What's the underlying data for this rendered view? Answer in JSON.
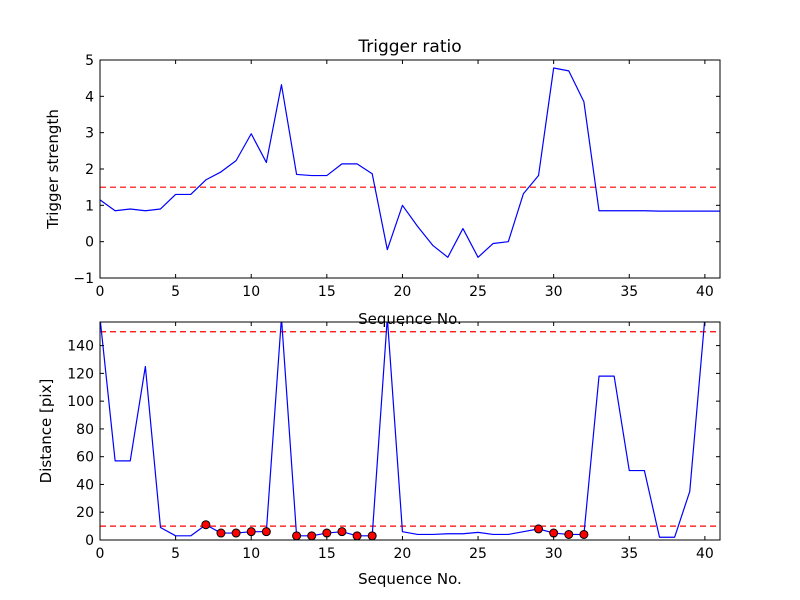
{
  "chart_data": [
    {
      "type": "line",
      "title": "Trigger ratio",
      "xlabel": "Sequence No.",
      "ylabel": "Trigger strength",
      "xlim": [
        0,
        41
      ],
      "ylim": [
        -1,
        5
      ],
      "xticks": [
        0,
        5,
        10,
        15,
        20,
        25,
        30,
        35,
        40
      ],
      "yticks": [
        -1,
        0,
        1,
        2,
        3,
        4,
        5
      ],
      "ytick_labels": [
        "−1",
        "0",
        "1",
        "2",
        "3",
        "4",
        "5"
      ],
      "threshold": 1.5,
      "threshold_color": "#ff0000",
      "line_color": "#0000ff",
      "series": [
        {
          "x": [
            0,
            1,
            2,
            3,
            4,
            5,
            6,
            7,
            8,
            9,
            10,
            11,
            12,
            13,
            14,
            15,
            16,
            17,
            18,
            19,
            20,
            21,
            22,
            23,
            24,
            25,
            26,
            27,
            28,
            29,
            30,
            31,
            32,
            33,
            34,
            35,
            36,
            37,
            38,
            39,
            40,
            41
          ],
          "values": [
            1.15,
            0.85,
            0.9,
            0.85,
            0.9,
            1.3,
            1.3,
            1.7,
            1.92,
            2.23,
            2.97,
            2.18,
            4.32,
            1.85,
            1.82,
            1.82,
            2.14,
            2.14,
            1.87,
            -0.22,
            1.0,
            0.42,
            -0.1,
            -0.43,
            0.36,
            -0.43,
            -0.05,
            0.0,
            1.32,
            1.82,
            4.78,
            4.7,
            3.85,
            0.85,
            0.85,
            0.85,
            0.85,
            0.84,
            0.84,
            0.84,
            0.84,
            0.84
          ]
        }
      ]
    },
    {
      "type": "line",
      "title": "",
      "xlabel": "Sequence No.",
      "ylabel": "Distance [pix]",
      "xlim": [
        0,
        41
      ],
      "ylim": [
        0,
        157
      ],
      "xticks": [
        0,
        5,
        10,
        15,
        20,
        25,
        30,
        35,
        40
      ],
      "yticks": [
        0,
        20,
        40,
        60,
        80,
        100,
        120,
        140
      ],
      "thresholds": [
        10,
        150
      ],
      "threshold_color": "#ff0000",
      "line_color": "#0000ff",
      "marker_color": "#ff0000",
      "series": [
        {
          "x": [
            0,
            1,
            2,
            3,
            4,
            5,
            6,
            7,
            8,
            9,
            10,
            11,
            12,
            13,
            14,
            15,
            16,
            17,
            18,
            19,
            20,
            21,
            22,
            23,
            24,
            25,
            26,
            27,
            28,
            29,
            30,
            31,
            32,
            33,
            34,
            35,
            36,
            37,
            38,
            39,
            40,
            41
          ],
          "values": [
            160,
            57,
            57,
            125,
            9,
            3,
            3,
            11,
            5,
            5,
            6,
            6,
            160,
            3,
            3,
            5,
            6,
            3,
            3,
            160,
            6,
            4,
            4,
            4.5,
            4.5,
            5.5,
            4,
            4,
            6,
            8,
            5,
            4,
            4,
            118,
            118,
            50,
            50,
            2,
            2,
            35,
            160,
            160
          ]
        }
      ],
      "markers": [
        {
          "x": 7,
          "y": 11
        },
        {
          "x": 8,
          "y": 5
        },
        {
          "x": 9,
          "y": 5
        },
        {
          "x": 10,
          "y": 6
        },
        {
          "x": 11,
          "y": 6
        },
        {
          "x": 13,
          "y": 3
        },
        {
          "x": 14,
          "y": 3
        },
        {
          "x": 15,
          "y": 5
        },
        {
          "x": 16,
          "y": 6
        },
        {
          "x": 17,
          "y": 3
        },
        {
          "x": 18,
          "y": 3
        },
        {
          "x": 29,
          "y": 8
        },
        {
          "x": 30,
          "y": 5
        },
        {
          "x": 31,
          "y": 4
        },
        {
          "x": 32,
          "y": 4
        }
      ]
    }
  ]
}
